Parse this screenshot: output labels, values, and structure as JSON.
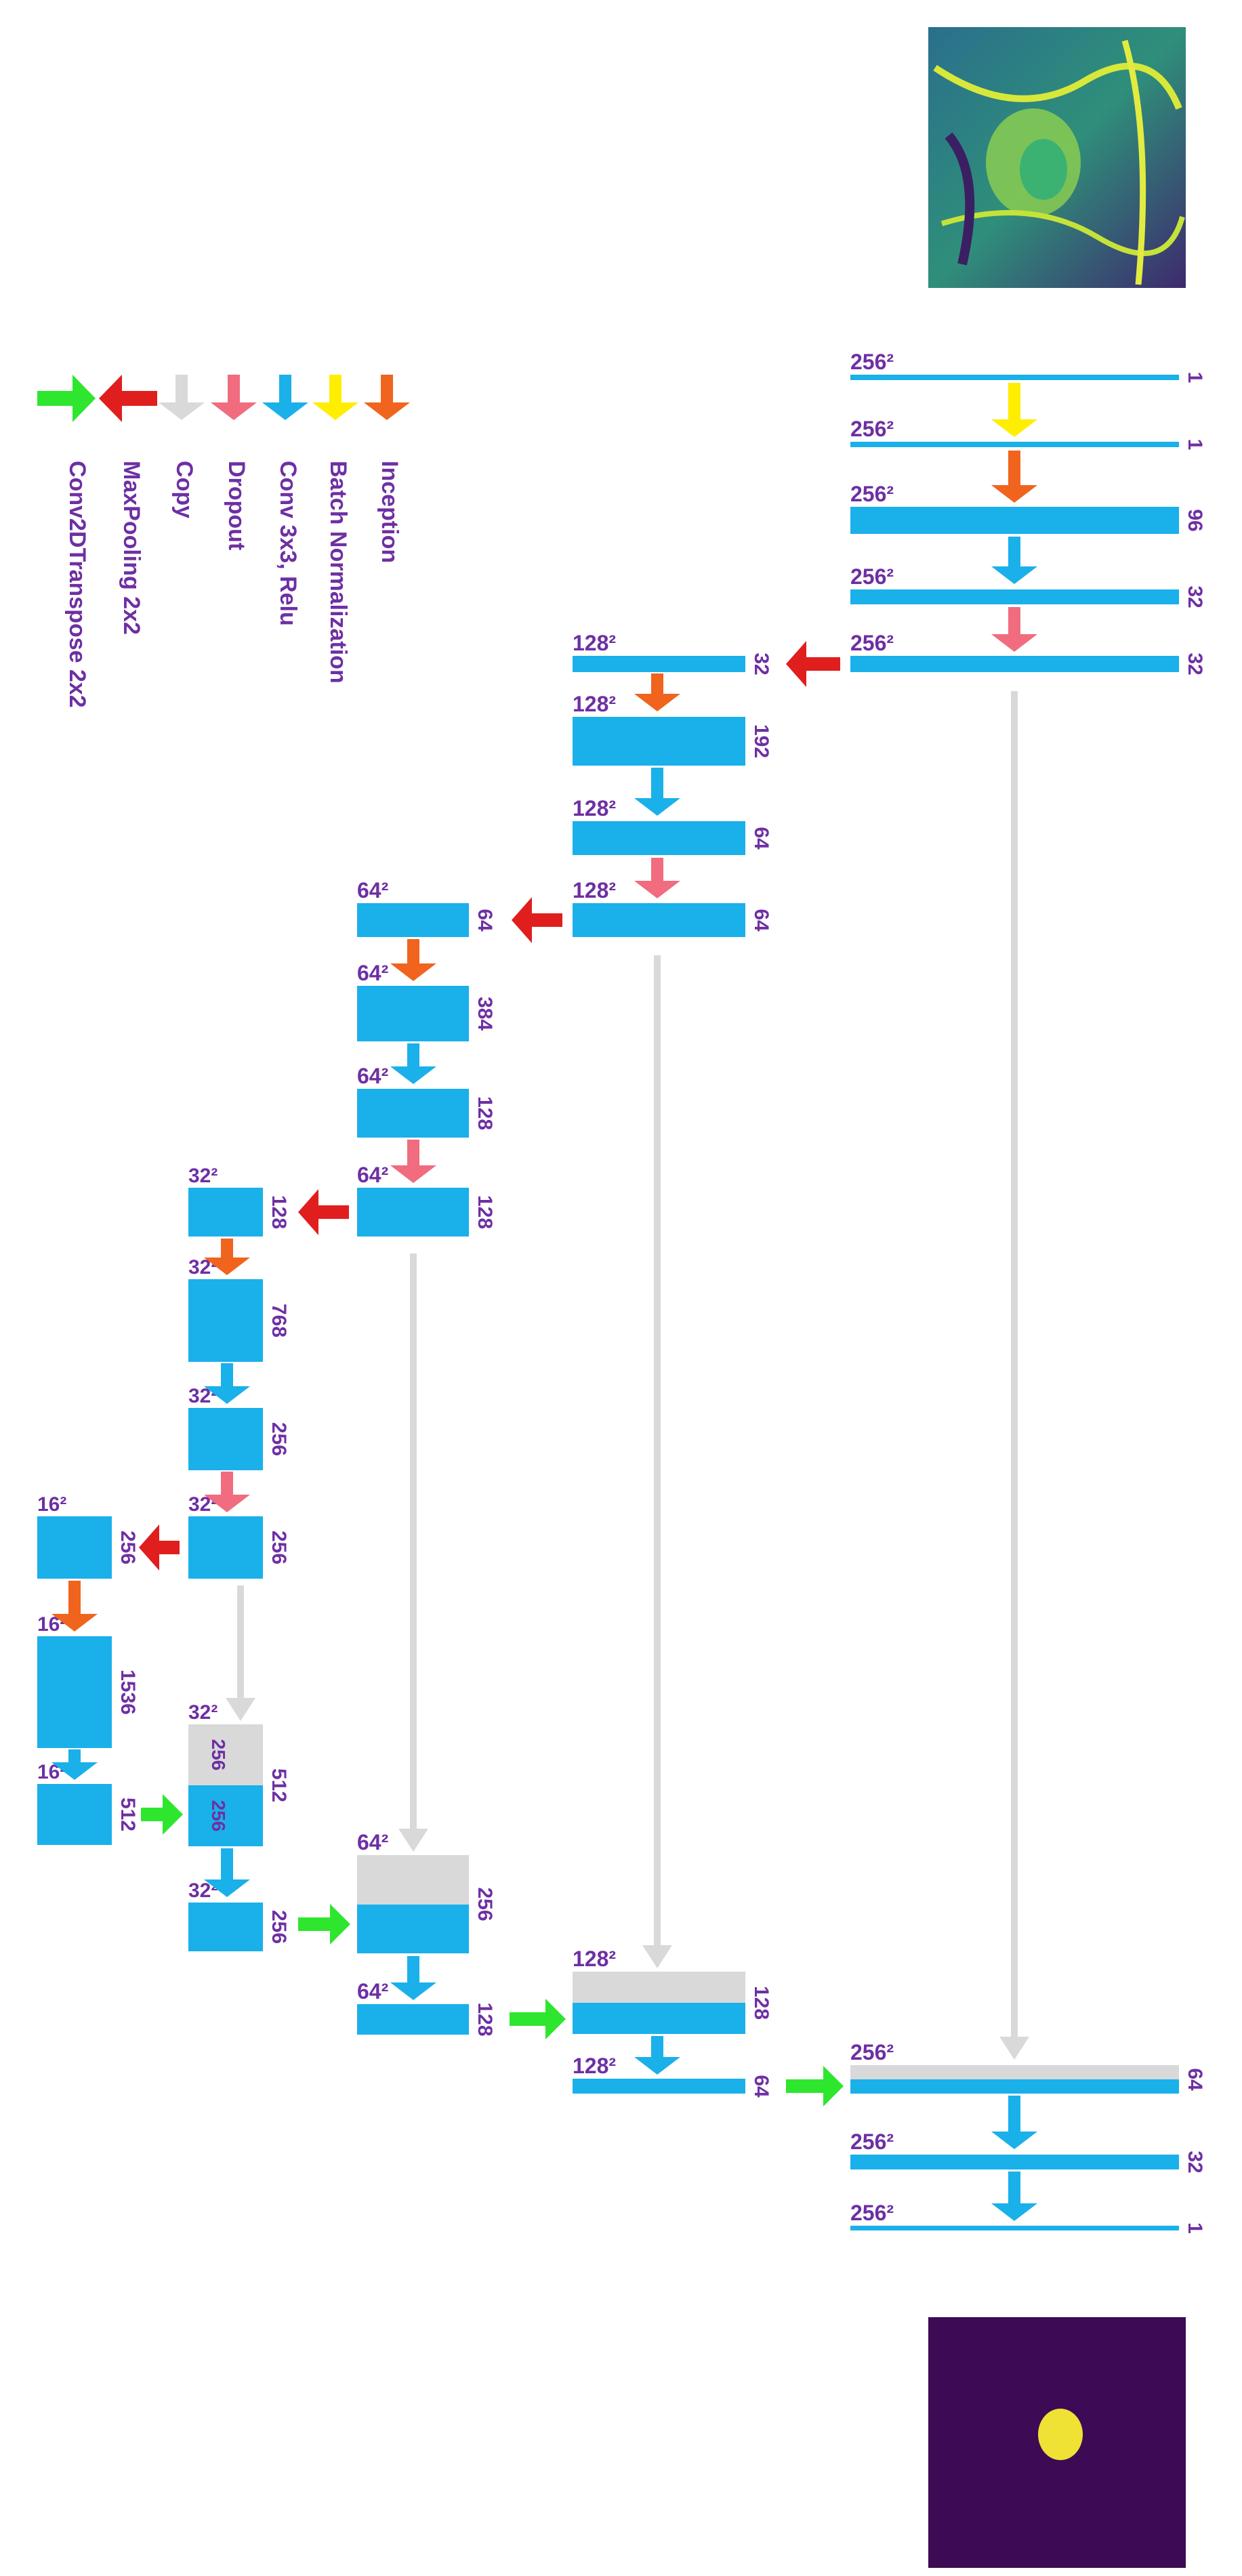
{
  "legend": [
    {
      "key": "inception",
      "label": "Inception",
      "color": "#f0641e"
    },
    {
      "key": "batchnorm",
      "label": "Batch Normalization",
      "color": "#ffee00"
    },
    {
      "key": "conv",
      "label": "Conv 3x3, Relu",
      "color": "#1ab0ea"
    },
    {
      "key": "dropout",
      "label": "Dropout",
      "color": "#f06c7e"
    },
    {
      "key": "copy",
      "label": "Copy",
      "color": "#d9d9d9"
    },
    {
      "key": "maxpool",
      "label": "MaxPooling 2x2",
      "color": "#e01e1e"
    },
    {
      "key": "upconv",
      "label": "Conv2DTranspose 2x2",
      "color": "#2ee62e"
    }
  ],
  "colors": {
    "block": "#1ab0ea",
    "copy_block": "#d9d9d9",
    "text": "#6e2fa3"
  },
  "blocks": [
    {
      "id": "d1a",
      "res": "256²",
      "ch": "1"
    },
    {
      "id": "d1b",
      "res": "256²",
      "ch": "1"
    },
    {
      "id": "d1c",
      "res": "256²",
      "ch": "96"
    },
    {
      "id": "d1d",
      "res": "256²",
      "ch": "32"
    },
    {
      "id": "d1e",
      "res": "256²",
      "ch": "32"
    },
    {
      "id": "d2a",
      "res": "128²",
      "ch": "32"
    },
    {
      "id": "d2b",
      "res": "128²",
      "ch": "192"
    },
    {
      "id": "d2c",
      "res": "128²",
      "ch": "64"
    },
    {
      "id": "d2d",
      "res": "128²",
      "ch": "64"
    },
    {
      "id": "d3a",
      "res": "64²",
      "ch": "64"
    },
    {
      "id": "d3b",
      "res": "64²",
      "ch": "384"
    },
    {
      "id": "d3c",
      "res": "64²",
      "ch": "128"
    },
    {
      "id": "d3d",
      "res": "64²",
      "ch": "128"
    },
    {
      "id": "d4a",
      "res": "32²",
      "ch": "128"
    },
    {
      "id": "d4b",
      "res": "32²",
      "ch": "768"
    },
    {
      "id": "d4c",
      "res": "32²",
      "ch": "256"
    },
    {
      "id": "d4d",
      "res": "32²",
      "ch": "256"
    },
    {
      "id": "b1",
      "res": "16²",
      "ch": "256"
    },
    {
      "id": "b2",
      "res": "16²",
      "ch": "1536"
    },
    {
      "id": "b3",
      "res": "16²",
      "ch": "512"
    },
    {
      "id": "u4a",
      "res": "32²",
      "ch": "512",
      "copy_ch": "256",
      "up_ch": "256"
    },
    {
      "id": "u4b",
      "res": "32²",
      "ch": "256"
    },
    {
      "id": "u3a",
      "res": "64²",
      "ch": "256"
    },
    {
      "id": "u3b",
      "res": "64²",
      "ch": "128"
    },
    {
      "id": "u2a",
      "res": "128²",
      "ch": "128"
    },
    {
      "id": "u2b",
      "res": "128²",
      "ch": "64"
    },
    {
      "id": "u1a",
      "res": "256²",
      "ch": "64"
    },
    {
      "id": "u1b",
      "res": "256²",
      "ch": "32"
    },
    {
      "id": "u1c",
      "res": "256²",
      "ch": "1"
    }
  ]
}
